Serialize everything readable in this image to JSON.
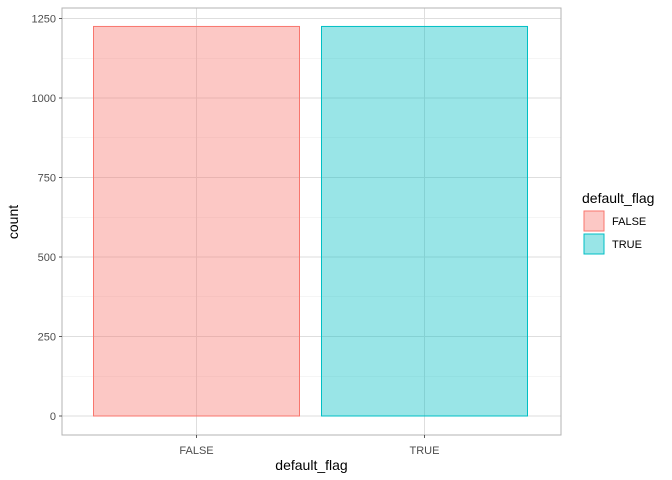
{
  "chart_data": {
    "type": "bar",
    "categories": [
      "FALSE",
      "TRUE"
    ],
    "values": [
      1225,
      1225
    ],
    "xlabel": "default_flag",
    "ylabel": "count",
    "ylim": [
      0,
      1250
    ],
    "yticks": [
      0,
      250,
      500,
      750,
      1000,
      1250
    ],
    "grid": true,
    "legend": {
      "title": "default_flag",
      "position": "right",
      "entries": [
        "FALSE",
        "TRUE"
      ]
    },
    "colors": {
      "FALSE": {
        "fill": "#f8766d",
        "stroke": "#f8766d"
      },
      "TRUE": {
        "fill": "#00bfc4",
        "stroke": "#00bfc4"
      }
    },
    "fill_opacity": 0.4
  }
}
